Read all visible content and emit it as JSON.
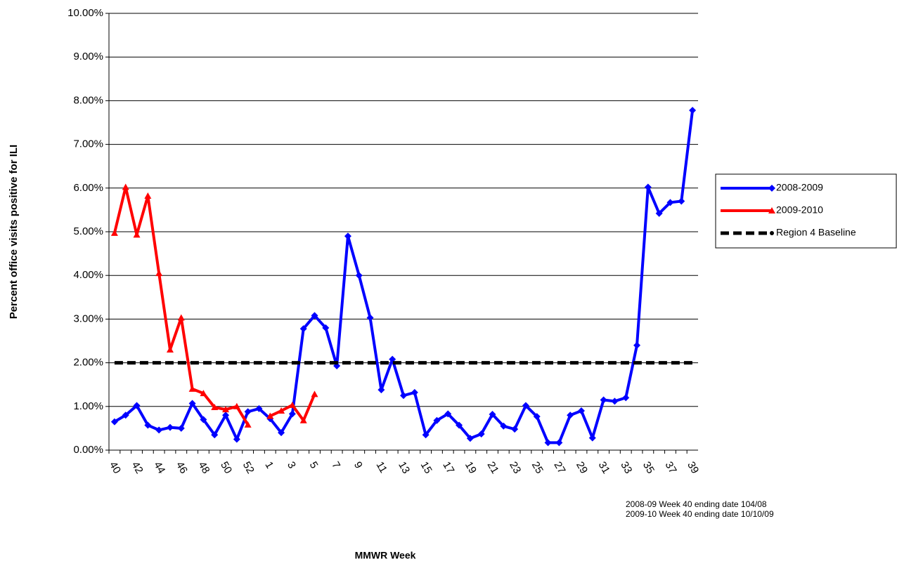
{
  "chart_data": {
    "type": "line",
    "y_label": "Percent office visits positive for ILI",
    "x_label": "MMWR Week",
    "notes": [
      "2008-09  Week 40 ending date 104/08",
      "2009-10  Week 40 ending date 10/10/09"
    ],
    "categories": [
      "40",
      null,
      "42",
      null,
      "44",
      null,
      "46",
      null,
      "48",
      null,
      "50",
      null,
      "52",
      null,
      "1",
      null,
      "3",
      null,
      "5",
      null,
      "7",
      null,
      "9",
      null,
      "11",
      null,
      "13",
      null,
      "15",
      null,
      "17",
      null,
      "19",
      null,
      "21",
      null,
      "23",
      null,
      "25",
      null,
      "27",
      null,
      "29",
      null,
      "31",
      null,
      "33",
      null,
      "35",
      null,
      "37",
      null,
      "39"
    ],
    "ylim": [
      0,
      10
    ],
    "yticks": [
      {
        "value": 0,
        "label": "0.00%"
      },
      {
        "value": 1,
        "label": "1.00%"
      },
      {
        "value": 2,
        "label": "2.00%"
      },
      {
        "value": 3,
        "label": "3.00%"
      },
      {
        "value": 4,
        "label": "4.00%"
      },
      {
        "value": 5,
        "label": "5.00%"
      },
      {
        "value": 6,
        "label": "6.00%"
      },
      {
        "value": 7,
        "label": "7.00%"
      },
      {
        "value": 8,
        "label": "8.00%"
      },
      {
        "value": 9,
        "label": "9.00%"
      },
      {
        "value": 10,
        "label": "10.00%"
      }
    ],
    "grid": true,
    "legend": "right",
    "series": [
      {
        "name": "2008-2009",
        "color": "#0000ff",
        "marker": "diamond",
        "dashed": false,
        "values": [
          0.65,
          0.8,
          1.02,
          0.57,
          0.46,
          0.52,
          0.5,
          1.07,
          0.7,
          0.35,
          0.8,
          0.25,
          0.88,
          0.95,
          0.72,
          0.4,
          0.83,
          2.78,
          3.08,
          2.8,
          1.93,
          4.9,
          4.0,
          3.03,
          1.38,
          2.08,
          1.25,
          1.32,
          0.35,
          0.68,
          0.83,
          0.57,
          0.27,
          0.37,
          0.82,
          0.55,
          0.48,
          1.02,
          0.77,
          0.17,
          0.17,
          0.8,
          0.9,
          0.28,
          1.15,
          1.12,
          1.2,
          2.4,
          6.02,
          5.42,
          5.67,
          5.7,
          7.78
        ]
      },
      {
        "name": "2009-2010",
        "color": "#ff0000",
        "marker": "triangle",
        "dashed": false,
        "values": [
          4.97,
          6.02,
          4.93,
          5.82,
          4.05,
          2.3,
          3.03,
          1.4,
          1.3,
          0.98,
          0.93,
          1.0,
          0.58,
          null,
          0.78,
          0.9,
          1.03,
          0.68,
          1.28,
          null,
          null,
          null,
          null,
          null,
          null,
          null,
          null,
          null,
          null,
          null,
          null,
          null,
          null,
          null,
          null,
          null,
          null,
          null,
          null,
          null,
          null,
          null,
          null,
          null,
          null,
          null,
          null,
          null,
          null,
          null,
          null,
          null,
          null
        ]
      },
      {
        "name": "Region 4 Baseline",
        "color": "#000000",
        "marker": "circle",
        "dashed": true,
        "values": [
          2,
          2,
          2,
          2,
          2,
          2,
          2,
          2,
          2,
          2,
          2,
          2,
          2,
          2,
          2,
          2,
          2,
          2,
          2,
          2,
          2,
          2,
          2,
          2,
          2,
          2,
          2,
          2,
          2,
          2,
          2,
          2,
          2,
          2,
          2,
          2,
          2,
          2,
          2,
          2,
          2,
          2,
          2,
          2,
          2,
          2,
          2,
          2,
          2,
          2,
          2,
          2,
          2
        ]
      }
    ]
  }
}
